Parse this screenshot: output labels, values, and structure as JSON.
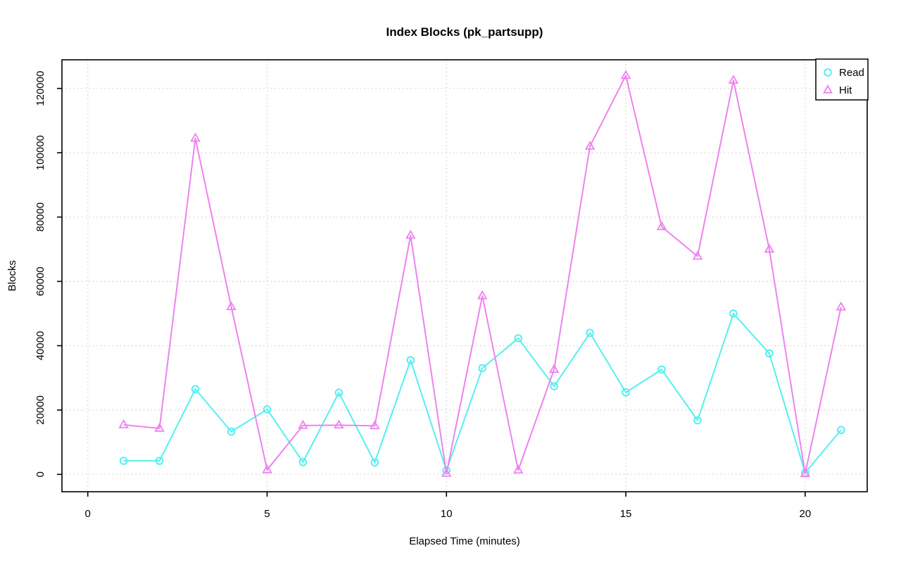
{
  "chart_data": {
    "type": "line",
    "title": "Index Blocks (pk_partsupp)",
    "xlabel": "Elapsed Time (minutes)",
    "ylabel": "Blocks",
    "x": [
      1,
      2,
      3,
      4,
      5,
      6,
      7,
      8,
      9,
      10,
      11,
      12,
      13,
      14,
      15,
      16,
      17,
      18,
      19,
      20,
      21
    ],
    "series": [
      {
        "name": "Read",
        "marker": "circle",
        "color": "#56EFF0",
        "values": [
          4200,
          4200,
          26500,
          13300,
          20200,
          3800,
          25400,
          3700,
          35500,
          1200,
          33000,
          42300,
          27400,
          44000,
          25500,
          32600,
          16800,
          50000,
          37600,
          500,
          13800
        ]
      },
      {
        "name": "Hit",
        "marker": "triangle",
        "color": "#EE82EE",
        "values": [
          15400,
          14300,
          104500,
          52100,
          1400,
          15200,
          15300,
          15100,
          74300,
          300,
          55500,
          1300,
          32600,
          102000,
          124000,
          77000,
          67800,
          122500,
          70000,
          200,
          52000
        ]
      }
    ],
    "xticks": [
      0,
      5,
      10,
      15,
      20
    ],
    "yticks": [
      0,
      20000,
      40000,
      60000,
      80000,
      100000,
      120000
    ],
    "xlim": [
      -0.72,
      21.73
    ],
    "ylim": [
      -5400,
      128900
    ],
    "grid": "dotted",
    "grid_color": "#d6d6d6",
    "axis_color": "#000000",
    "legend_position": "top-right",
    "legend": [
      "Read",
      "Hit"
    ]
  }
}
